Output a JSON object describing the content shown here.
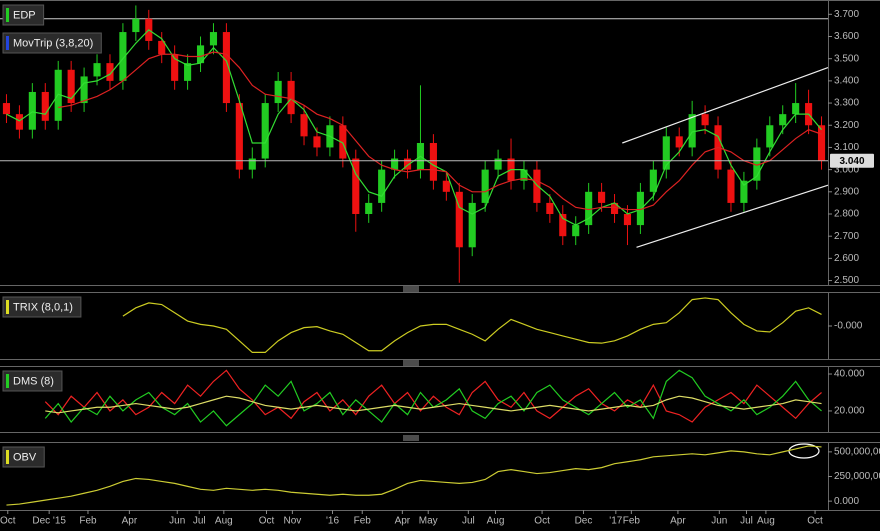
{
  "chart_data": [
    {
      "type": "candlestick",
      "legend": [
        {
          "name": "EDP",
          "color": "#22cc22"
        },
        {
          "name": "MovTrip (3,8,20)",
          "color": "#2244dd"
        }
      ],
      "xlim": [
        0,
        64
      ],
      "ylim": [
        2.48,
        3.76
      ],
      "yticks": [
        {
          "value": 2.5,
          "label": "2.500"
        },
        {
          "value": 2.6,
          "label": "2.600"
        },
        {
          "value": 2.7,
          "label": "2.700"
        },
        {
          "value": 2.8,
          "label": "2.800"
        },
        {
          "value": 2.9,
          "label": "2.900"
        },
        {
          "value": 3.0,
          "label": "3.000"
        },
        {
          "value": 3.1,
          "label": "3.100"
        },
        {
          "value": 3.2,
          "label": "3.200"
        },
        {
          "value": 3.3,
          "label": "3.300"
        },
        {
          "value": 3.4,
          "label": "3.400"
        },
        {
          "value": 3.5,
          "label": "3.500"
        },
        {
          "value": 3.6,
          "label": "3.600"
        },
        {
          "value": 3.7,
          "label": "3.700"
        }
      ],
      "up_color": "#22cc22",
      "down_color": "#ee1111",
      "open": [
        3.3,
        3.25,
        3.18,
        3.35,
        3.22,
        3.45,
        3.3,
        3.42,
        3.48,
        3.4,
        3.62,
        3.68,
        3.58,
        3.52,
        3.4,
        3.48,
        3.56,
        3.62,
        3.3,
        3.0,
        3.05,
        3.3,
        3.4,
        3.25,
        3.15,
        3.1,
        3.2,
        3.05,
        2.8,
        2.85,
        3.0,
        3.05,
        3.0,
        3.12,
        2.95,
        2.9,
        2.65,
        2.85,
        3.0,
        3.05,
        2.95,
        3.0,
        2.85,
        2.8,
        2.7,
        2.75,
        2.9,
        2.85,
        2.8,
        2.75,
        2.9,
        3.0,
        3.15,
        3.1,
        3.25,
        3.2,
        3.0,
        2.85,
        2.95,
        3.1,
        3.2,
        3.25,
        3.3,
        3.2
      ],
      "high": [
        3.34,
        3.29,
        3.39,
        3.39,
        3.49,
        3.49,
        3.46,
        3.52,
        3.52,
        3.66,
        3.74,
        3.72,
        3.62,
        3.56,
        3.52,
        3.6,
        3.66,
        3.66,
        3.34,
        3.1,
        3.34,
        3.44,
        3.44,
        3.29,
        3.19,
        3.24,
        3.24,
        3.09,
        2.89,
        3.04,
        3.09,
        3.09,
        3.38,
        3.16,
        2.99,
        2.94,
        2.89,
        3.04,
        3.09,
        3.14,
        3.04,
        3.04,
        2.89,
        2.84,
        2.79,
        2.94,
        2.94,
        2.89,
        2.84,
        2.94,
        3.04,
        3.19,
        3.19,
        3.31,
        3.29,
        3.24,
        3.04,
        2.99,
        3.14,
        3.24,
        3.29,
        3.39,
        3.36,
        3.24
      ],
      "low": [
        3.21,
        3.14,
        3.14,
        3.18,
        3.18,
        3.26,
        3.26,
        3.38,
        3.36,
        3.36,
        3.58,
        3.54,
        3.48,
        3.36,
        3.36,
        3.44,
        3.52,
        3.26,
        2.96,
        2.96,
        3.01,
        3.26,
        3.21,
        3.11,
        3.06,
        3.06,
        3.01,
        2.72,
        2.76,
        2.81,
        2.96,
        2.96,
        2.96,
        2.91,
        2.86,
        2.49,
        2.61,
        2.81,
        2.96,
        2.91,
        2.91,
        2.81,
        2.76,
        2.66,
        2.66,
        2.71,
        2.81,
        2.76,
        2.66,
        2.71,
        2.86,
        2.96,
        3.06,
        3.06,
        3.16,
        2.96,
        2.81,
        2.81,
        2.91,
        3.06,
        3.16,
        3.21,
        3.16,
        3.0
      ],
      "close": [
        3.25,
        3.18,
        3.35,
        3.22,
        3.45,
        3.3,
        3.42,
        3.48,
        3.4,
        3.62,
        3.68,
        3.58,
        3.52,
        3.4,
        3.48,
        3.56,
        3.62,
        3.3,
        3.0,
        3.05,
        3.3,
        3.4,
        3.25,
        3.15,
        3.1,
        3.2,
        3.05,
        2.8,
        2.85,
        3.0,
        3.05,
        3.0,
        3.12,
        2.95,
        2.9,
        2.65,
        2.85,
        3.0,
        3.05,
        2.95,
        3.0,
        2.85,
        2.8,
        2.7,
        2.75,
        2.9,
        2.85,
        2.8,
        2.75,
        2.9,
        3.0,
        3.15,
        3.1,
        3.25,
        3.2,
        3.0,
        2.85,
        2.95,
        3.1,
        3.2,
        3.25,
        3.3,
        3.2,
        3.04
      ],
      "series": [
        {
          "color": "#33dd33",
          "values": [
            3.25,
            3.22,
            3.26,
            3.25,
            3.34,
            3.32,
            3.39,
            3.4,
            3.43,
            3.5,
            3.57,
            3.63,
            3.59,
            3.5,
            3.47,
            3.48,
            3.55,
            3.49,
            3.31,
            3.12,
            3.12,
            3.25,
            3.32,
            3.27,
            3.17,
            3.15,
            3.12,
            2.98,
            2.9,
            2.88,
            2.97,
            3.02,
            3.06,
            3.02,
            2.99,
            2.83,
            2.8,
            2.83,
            2.97,
            3.0,
            3.0,
            2.93,
            2.88,
            2.78,
            2.75,
            2.78,
            2.83,
            2.85,
            2.8,
            2.82,
            2.88,
            3.02,
            3.08,
            3.17,
            3.18,
            3.15,
            3.02,
            2.93,
            2.97,
            3.08,
            3.18,
            3.25,
            3.25,
            3.18
          ]
        },
        {
          "color": "#dd2222",
          "values": [
            null,
            null,
            null,
            null,
            3.28,
            3.29,
            3.31,
            3.33,
            3.36,
            3.4,
            3.45,
            3.5,
            3.52,
            3.52,
            3.51,
            3.51,
            3.53,
            3.52,
            3.46,
            3.38,
            3.34,
            3.33,
            3.32,
            3.29,
            3.25,
            3.23,
            3.2,
            3.13,
            3.06,
            3.02,
            3.0,
            2.99,
            3.0,
            3.0,
            2.99,
            2.93,
            2.9,
            2.9,
            2.93,
            2.95,
            2.96,
            2.95,
            2.92,
            2.87,
            2.83,
            2.82,
            2.83,
            2.83,
            2.82,
            2.82,
            2.84,
            2.9,
            2.95,
            3.02,
            3.08,
            3.1,
            3.08,
            3.04,
            3.02,
            3.04,
            3.09,
            3.14,
            3.18,
            3.16
          ]
        }
      ],
      "trendlines": [
        {
          "x": [
            48.1,
            64
          ],
          "y": [
            3.12,
            3.46
          ]
        },
        {
          "x": [
            49.2,
            64
          ],
          "y": [
            2.65,
            2.93
          ]
        }
      ],
      "reference_lines": [
        3.68
      ],
      "last_price": {
        "value": 3.04,
        "label": "3.040"
      }
    },
    {
      "type": "line",
      "legend": [
        {
          "name": "TRIX (8,0,1)",
          "color": "#dddd22"
        }
      ],
      "xlim": [
        0,
        64
      ],
      "ylim": [
        -1,
        1
      ],
      "yticks": [
        {
          "value": 0,
          "label": "-0.000"
        }
      ],
      "series": [
        {
          "color": "#cccc22",
          "values": [
            null,
            null,
            null,
            null,
            null,
            null,
            null,
            null,
            null,
            0.3,
            0.55,
            0.7,
            0.65,
            0.4,
            0.15,
            0.05,
            0,
            -0.1,
            -0.45,
            -0.8,
            -0.8,
            -0.45,
            -0.2,
            -0.05,
            -0.02,
            -0.15,
            -0.25,
            -0.5,
            -0.75,
            -0.75,
            -0.45,
            -0.2,
            0,
            0.05,
            0.05,
            -0.1,
            -0.25,
            -0.45,
            -0.1,
            0.2,
            0.05,
            -0.1,
            -0.2,
            -0.3,
            -0.4,
            -0.5,
            -0.52,
            -0.45,
            -0.3,
            -0.1,
            0.05,
            0.1,
            0.4,
            0.8,
            0.85,
            0.8,
            0.4,
            0.05,
            -0.15,
            -0.18,
            0.1,
            0.45,
            0.55,
            0.35
          ]
        }
      ]
    },
    {
      "type": "line",
      "legend": [
        {
          "name": "DMS (8)",
          "color": "#22cc22"
        }
      ],
      "xlim": [
        0,
        64
      ],
      "ylim": [
        8.6,
        43.8
      ],
      "yticks": [
        {
          "value": 20,
          "label": "20.000"
        },
        {
          "value": 40,
          "label": "40.000"
        }
      ],
      "series": [
        {
          "color": "#ee2222",
          "values": [
            null,
            null,
            null,
            25,
            18,
            28,
            22,
            30,
            20,
            26,
            18,
            22,
            30,
            24,
            34,
            28,
            36,
            42,
            32,
            26,
            18,
            22,
            16,
            25,
            30,
            20,
            26,
            18,
            28,
            34,
            24,
            30,
            20,
            28,
            22,
            18,
            30,
            36,
            26,
            22,
            30,
            20,
            16,
            22,
            28,
            32,
            24,
            20,
            26,
            22,
            34,
            20,
            18,
            14,
            22,
            26,
            30,
            24,
            34,
            28,
            22,
            16,
            24,
            30
          ]
        },
        {
          "color": "#22cc22",
          "values": [
            null,
            null,
            null,
            16,
            24,
            14,
            22,
            18,
            28,
            20,
            26,
            30,
            22,
            18,
            24,
            14,
            20,
            12,
            18,
            24,
            34,
            28,
            36,
            20,
            24,
            30,
            18,
            26,
            20,
            14,
            24,
            18,
            30,
            22,
            26,
            32,
            20,
            16,
            24,
            28,
            20,
            30,
            34,
            26,
            22,
            18,
            24,
            30,
            22,
            26,
            16,
            36,
            42,
            38,
            28,
            24,
            20,
            26,
            18,
            22,
            28,
            36,
            26,
            20
          ]
        },
        {
          "color": "#dddd66",
          "values": [
            null,
            null,
            null,
            20,
            19,
            20,
            21,
            22,
            22,
            23,
            24,
            23,
            22,
            21,
            22,
            24,
            26,
            28,
            27,
            25,
            23,
            22,
            21,
            22,
            23,
            22,
            21,
            20,
            21,
            22,
            23,
            22,
            21,
            22,
            23,
            24,
            23,
            22,
            21,
            20,
            21,
            22,
            23,
            22,
            21,
            20,
            21,
            22,
            23,
            22,
            23,
            26,
            28,
            27,
            25,
            23,
            22,
            21,
            22,
            23,
            24,
            26,
            25,
            24
          ]
        }
      ]
    },
    {
      "type": "line",
      "legend": [
        {
          "name": "OBV",
          "color": "#dddd22"
        }
      ],
      "xlim": [
        0,
        64
      ],
      "ylim": [
        -90000000,
        590000000
      ],
      "yticks": [
        {
          "value": 0,
          "label": "0.000"
        },
        {
          "value": 250000000,
          "label": "250,000,00"
        },
        {
          "value": 500000000,
          "label": "500,000,00"
        }
      ],
      "xticks": [
        {
          "value": 0.6,
          "label": "Oct"
        },
        {
          "value": 3.8,
          "label": "Dec '15"
        },
        {
          "value": 6.8,
          "label": "Feb"
        },
        {
          "value": 10,
          "label": "Apr"
        },
        {
          "value": 13.7,
          "label": "Jun"
        },
        {
          "value": 15.4,
          "label": "Jul"
        },
        {
          "value": 17.3,
          "label": "Aug"
        },
        {
          "value": 20.6,
          "label": "Oct"
        },
        {
          "value": 22.6,
          "label": "Nov"
        },
        {
          "value": 25.7,
          "label": "'16"
        },
        {
          "value": 28,
          "label": "Feb"
        },
        {
          "value": 31.1,
          "label": "Apr"
        },
        {
          "value": 33.1,
          "label": "May"
        },
        {
          "value": 36.2,
          "label": "Jul"
        },
        {
          "value": 38.3,
          "label": "Aug"
        },
        {
          "value": 41.9,
          "label": "Oct"
        },
        {
          "value": 45.1,
          "label": "Dec"
        },
        {
          "value": 47.6,
          "label": "'17"
        },
        {
          "value": 48.8,
          "label": "Feb"
        },
        {
          "value": 52.4,
          "label": "Apr"
        },
        {
          "value": 55.6,
          "label": "Jun"
        },
        {
          "value": 57.7,
          "label": "Jul"
        },
        {
          "value": 59.2,
          "label": "Aug"
        },
        {
          "value": 63,
          "label": "Oct"
        }
      ],
      "series": [
        {
          "color": "#cccc33",
          "values": [
            -40000000,
            -30000000,
            -10000000,
            10000000,
            30000000,
            50000000,
            80000000,
            110000000,
            150000000,
            200000000,
            230000000,
            220000000,
            200000000,
            180000000,
            150000000,
            120000000,
            110000000,
            130000000,
            120000000,
            110000000,
            120000000,
            110000000,
            90000000,
            80000000,
            70000000,
            60000000,
            70000000,
            60000000,
            60000000,
            70000000,
            120000000,
            180000000,
            210000000,
            200000000,
            190000000,
            180000000,
            190000000,
            220000000,
            300000000,
            320000000,
            300000000,
            280000000,
            290000000,
            310000000,
            330000000,
            320000000,
            340000000,
            380000000,
            400000000,
            420000000,
            450000000,
            460000000,
            470000000,
            480000000,
            470000000,
            490000000,
            510000000,
            500000000,
            480000000,
            470000000,
            500000000,
            530000000,
            560000000,
            550000000
          ]
        }
      ]
    }
  ]
}
